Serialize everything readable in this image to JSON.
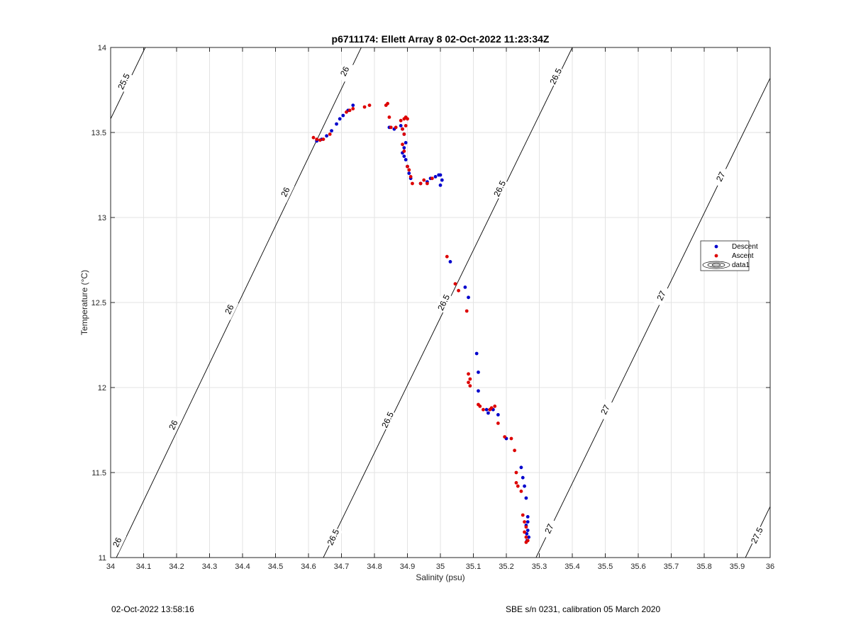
{
  "chart_data": {
    "type": "scatter",
    "title": "p6711174: Ellett Array 8 02-Oct-2022 11:23:34Z",
    "xlabel": "Salinity (psu)",
    "ylabel": "Temperature (°C)",
    "xlim": [
      34,
      36
    ],
    "ylim": [
      11,
      14
    ],
    "xticks": [
      "34",
      "34.1",
      "34.2",
      "34.3",
      "34.4",
      "34.5",
      "34.6",
      "34.7",
      "34.8",
      "34.9",
      "35",
      "35.1",
      "35.2",
      "35.3",
      "35.4",
      "35.5",
      "35.6",
      "35.7",
      "35.8",
      "35.9",
      "36"
    ],
    "yticks": [
      "11",
      "11.5",
      "12",
      "12.5",
      "13",
      "13.5",
      "14"
    ],
    "grid": true,
    "legend_position": "right",
    "legend": [
      "Descent",
      "Ascent",
      "data1"
    ],
    "colors": {
      "descent": "#0000cc",
      "ascent": "#dd0000",
      "contour": "#000000",
      "grid": "#e3e3e3"
    },
    "contours": [
      {
        "level": "25.5",
        "points": [
          [
            34.0,
            13.58
          ],
          [
            34.105,
            14.0
          ]
        ],
        "labels": [
          [
            34.04,
            13.8
          ]
        ]
      },
      {
        "level": "26",
        "points": [
          [
            34.0,
            10.93
          ],
          [
            34.76,
            14.0
          ]
        ],
        "labels": [
          [
            34.02,
            11.09
          ],
          [
            34.19,
            11.78
          ],
          [
            34.36,
            12.46
          ],
          [
            34.53,
            13.15
          ],
          [
            34.71,
            13.86
          ]
        ]
      },
      {
        "level": "26.5",
        "points": [
          [
            34.645,
            11.0
          ],
          [
            35.4,
            14.0
          ]
        ],
        "labels": [
          [
            34.675,
            11.12
          ],
          [
            34.84,
            11.81
          ],
          [
            35.01,
            12.5
          ],
          [
            35.18,
            13.17
          ],
          [
            35.35,
            13.83
          ]
        ]
      },
      {
        "level": "27",
        "points": [
          [
            35.29,
            11.0
          ],
          [
            36.0,
            13.82
          ]
        ],
        "labels": [
          [
            35.33,
            11.17
          ],
          [
            35.5,
            11.87
          ],
          [
            35.67,
            12.54
          ],
          [
            35.85,
            13.24
          ]
        ]
      },
      {
        "level": "27.5",
        "points": [
          [
            35.925,
            11.0
          ],
          [
            36.0,
            11.3
          ]
        ],
        "labels": [
          [
            35.96,
            11.13
          ]
        ]
      }
    ],
    "series": [
      {
        "name": "Descent",
        "x": [
          34.625,
          34.64,
          34.655,
          34.67,
          34.685,
          34.695,
          34.705,
          34.72,
          34.735,
          34.845,
          34.86,
          34.88,
          34.885,
          34.89,
          34.895,
          34.89,
          34.885,
          34.89,
          34.895,
          34.9,
          34.905,
          34.91,
          34.94,
          34.96,
          34.97,
          34.985,
          34.995,
          35.0,
          35.005,
          35.0,
          35.03,
          35.075,
          35.085,
          35.11,
          35.115,
          35.115,
          35.14,
          35.145,
          35.16,
          35.175,
          35.2,
          35.245,
          35.25,
          35.255,
          35.26,
          35.265,
          35.265,
          35.26,
          35.265,
          35.262,
          35.268,
          35.263
        ],
        "y": [
          13.45,
          13.46,
          13.48,
          13.51,
          13.55,
          13.58,
          13.6,
          13.63,
          13.66,
          13.53,
          13.52,
          13.54,
          13.52,
          13.49,
          13.44,
          13.41,
          13.38,
          13.36,
          13.34,
          13.3,
          13.26,
          13.23,
          13.2,
          13.21,
          13.23,
          13.24,
          13.25,
          13.25,
          13.22,
          13.19,
          12.74,
          12.59,
          12.53,
          12.2,
          12.09,
          11.98,
          11.87,
          11.85,
          11.87,
          11.84,
          11.7,
          11.53,
          11.47,
          11.42,
          11.35,
          11.24,
          11.21,
          11.19,
          11.16,
          11.14,
          11.12,
          11.1
        ]
      },
      {
        "name": "Ascent",
        "x": [
          34.615,
          34.625,
          34.635,
          34.645,
          34.665,
          34.715,
          34.725,
          34.735,
          34.77,
          34.785,
          34.835,
          34.84,
          34.845,
          34.85,
          34.865,
          34.88,
          34.89,
          34.895,
          34.9,
          34.895,
          34.885,
          34.89,
          34.885,
          34.89,
          34.9,
          34.905,
          34.91,
          34.915,
          34.94,
          34.95,
          34.96,
          34.975,
          35.02,
          35.045,
          35.055,
          35.08,
          35.085,
          35.09,
          35.085,
          35.09,
          35.115,
          35.12,
          35.13,
          35.15,
          35.155,
          35.165,
          35.175,
          35.195,
          35.215,
          35.225,
          35.23,
          35.23,
          35.235,
          35.245,
          35.25,
          35.255,
          35.26,
          35.255,
          35.26,
          35.265,
          35.26
        ],
        "y": [
          13.47,
          13.46,
          13.455,
          13.46,
          13.49,
          13.62,
          13.63,
          13.64,
          13.65,
          13.66,
          13.66,
          13.67,
          13.59,
          13.53,
          13.53,
          13.57,
          13.58,
          13.54,
          13.58,
          13.59,
          13.52,
          13.49,
          13.43,
          13.39,
          13.3,
          13.28,
          13.24,
          13.2,
          13.2,
          13.22,
          13.2,
          13.23,
          12.77,
          12.61,
          12.57,
          12.45,
          12.08,
          12.05,
          12.03,
          12.01,
          11.9,
          11.89,
          11.87,
          11.87,
          11.88,
          11.89,
          11.79,
          11.71,
          11.7,
          11.63,
          11.5,
          11.44,
          11.42,
          11.39,
          11.25,
          11.21,
          11.18,
          11.15,
          11.12,
          11.1,
          11.09
        ]
      }
    ]
  },
  "footer": {
    "left": "02-Oct-2022 13:58:16",
    "right": "SBE s/n 0231, calibration 05 March 2020"
  }
}
